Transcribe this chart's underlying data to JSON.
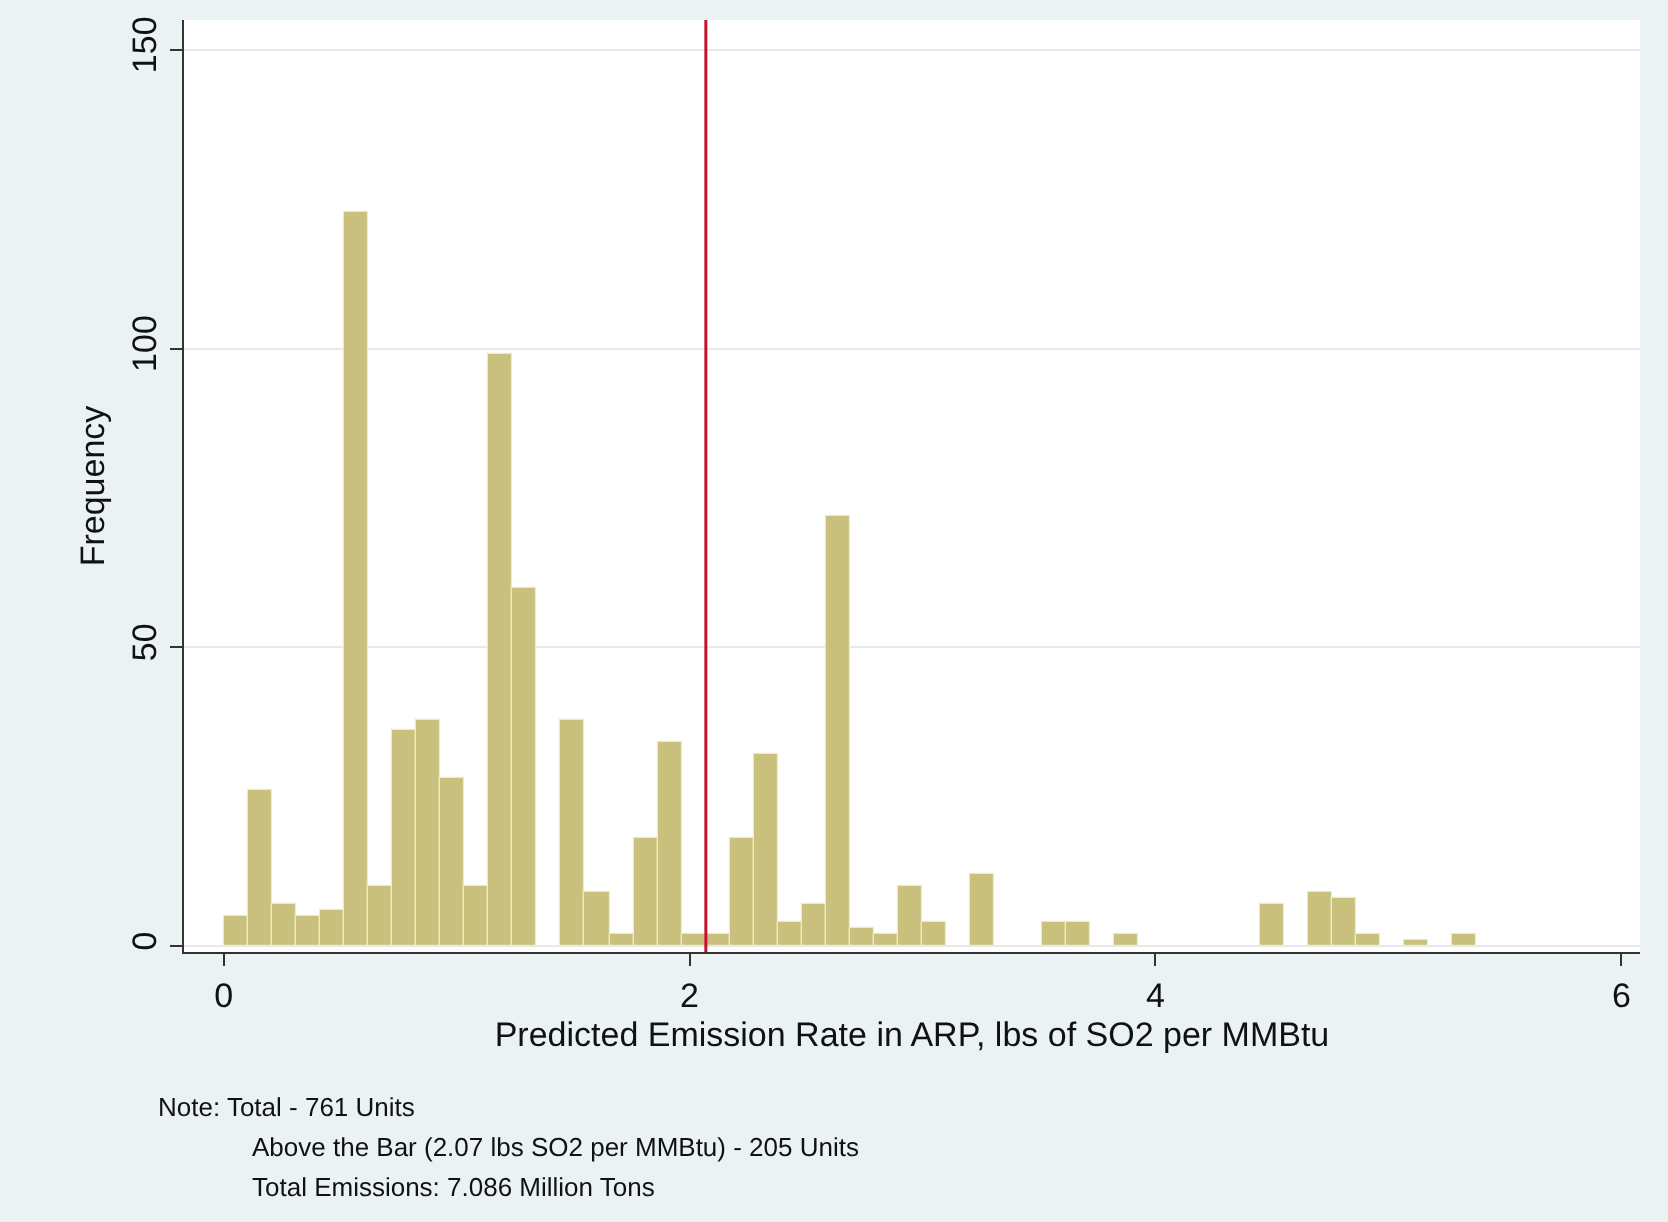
{
  "chart_data": {
    "type": "histogram",
    "xlabel": "Predicted Emission Rate in ARP, lbs of SO2 per MMBtu",
    "ylabel": "Frequency",
    "bins": [
      0,
      0.1034,
      0.2068,
      0.3102,
      0.4136,
      0.517,
      0.6204,
      0.7238,
      0.8272,
      0.9306,
      1.034,
      1.1374,
      1.2408,
      1.3442,
      1.4476,
      1.551,
      1.6544,
      1.7578,
      1.8612,
      1.9646,
      2.068,
      2.1714,
      2.2748,
      2.3782,
      2.4816,
      2.585,
      2.6884,
      2.7918,
      2.8952,
      2.9986,
      3.102,
      3.2054,
      3.3088,
      3.4122,
      3.5156,
      3.619,
      3.7224,
      3.8258,
      3.9292,
      4.0326,
      4.136,
      4.2394,
      4.3428,
      4.4462,
      4.5496,
      4.653,
      4.7564,
      4.8598,
      4.9632,
      5.0666,
      5.17,
      5.2734,
      5.3768
    ],
    "values": [
      5,
      26,
      7,
      5,
      6,
      123,
      10,
      36,
      38,
      28,
      10,
      99,
      60,
      0,
      38,
      9,
      2,
      18,
      34,
      2,
      2,
      18,
      32,
      4,
      7,
      72,
      3,
      2,
      10,
      4,
      0,
      12,
      0,
      0,
      4,
      4,
      0,
      2,
      0,
      0,
      0,
      0,
      0,
      7,
      0,
      9,
      8,
      2,
      0,
      1,
      0,
      2
    ],
    "color": "#c8c07c",
    "xlim": [
      -0.17,
      6.08
    ],
    "xticks": [
      0,
      2,
      4,
      6
    ],
    "ylim": [
      -1,
      155
    ],
    "yticks": [
      0,
      50,
      100,
      150
    ],
    "grid": "y",
    "ref_lines": [
      {
        "axis": "x",
        "value": 2.07,
        "color": "#c8102e"
      }
    ],
    "annotations": [
      "Note: Total - 761 Units",
      "Above the Bar (2.07 lbs SO2 per MMBtu) - 205 Units",
      "Total Emissions: 7.086 Million Tons"
    ]
  }
}
